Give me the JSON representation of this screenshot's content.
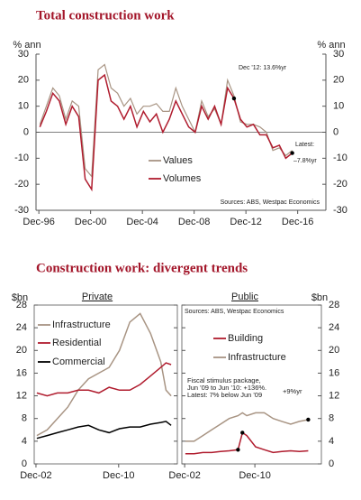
{
  "chart_data": [
    {
      "type": "line",
      "title": "Total construction work",
      "y_label": "% ann",
      "x": [
        1997,
        1997.5,
        1998,
        1998.5,
        1999,
        1999.5,
        2000,
        2000.5,
        2001,
        2001.5,
        2002,
        2002.5,
        2003,
        2003.5,
        2004,
        2004.5,
        2005,
        2005.5,
        2006,
        2006.5,
        2007,
        2007.5,
        2008,
        2008.5,
        2009,
        2009.5,
        2010,
        2010.5,
        2011,
        2011.5,
        2012,
        2012.5,
        2013,
        2013.5,
        2014,
        2014.5,
        2015,
        2015.5,
        2016,
        2016.5
      ],
      "xlim": [
        1996.7,
        2019.1
      ],
      "xticks": [
        {
          "value": 1996.92,
          "label": "Dec-96"
        },
        {
          "value": 2000.92,
          "label": "Dec-00"
        },
        {
          "value": 2004.92,
          "label": "Dec-04"
        },
        {
          "value": 2008.92,
          "label": "Dec-08"
        },
        {
          "value": 2012.92,
          "label": "Dec-12"
        },
        {
          "value": 2016.92,
          "label": "Dec-16"
        }
      ],
      "ylim": [
        -30,
        30
      ],
      "yticks": [
        -30,
        -20,
        -10,
        0,
        10,
        20,
        30
      ],
      "series": [
        {
          "name": "Values",
          "color": "#a89483",
          "values": [
            3,
            10,
            17,
            14,
            5,
            12,
            10,
            -14,
            -17,
            24,
            26,
            17,
            15,
            10,
            13,
            7,
            10,
            10,
            11,
            8,
            8,
            17,
            10,
            5,
            0,
            12,
            6,
            9,
            3,
            20,
            14,
            4,
            3,
            3,
            2,
            0,
            -7,
            -6,
            -9,
            -7
          ]
        },
        {
          "name": "Volumes",
          "color": "#b01c2e",
          "values": [
            2,
            8,
            15,
            12,
            3,
            10,
            6,
            -18,
            -22,
            20,
            22,
            12,
            10,
            5,
            10,
            2,
            8,
            4,
            7,
            0,
            5,
            12,
            7,
            2,
            0,
            10,
            5,
            10,
            3,
            17,
            13,
            5,
            2,
            3,
            -1,
            -1,
            -6,
            -5,
            -10,
            -8
          ]
        }
      ],
      "annotations": [
        "Dec '12: 13.6%yr",
        "Latest:",
        "–7.8%yr",
        "Sources: ABS, Westpac Economics"
      ]
    },
    {
      "type": "line",
      "title": "Construction work: divergent trends",
      "subtitle": "Private",
      "y_label": "$bn",
      "x": [
        2003,
        2004,
        2005,
        2006,
        2007,
        2008,
        2009,
        2010,
        2011,
        2012,
        2013,
        2014,
        2015,
        2015.5,
        2016
      ],
      "xlim": [
        2002.75,
        2016.6
      ],
      "xticks": [
        {
          "value": 2002.92,
          "label": "Dec-02"
        },
        {
          "value": 2010.92,
          "label": "Dec-10"
        }
      ],
      "ylim": [
        0,
        28
      ],
      "yticks": [
        0,
        4,
        8,
        12,
        16,
        20,
        24,
        28
      ],
      "series": [
        {
          "name": "Infrastructure",
          "color": "#a89483",
          "values": [
            5,
            6,
            8,
            10,
            13,
            15,
            16,
            17,
            20,
            25,
            26.5,
            23,
            18,
            13,
            12
          ]
        },
        {
          "name": "Residential",
          "color": "#b01c2e",
          "values": [
            12.5,
            12,
            12.5,
            12.5,
            13,
            13,
            12.5,
            13.5,
            13,
            13,
            14,
            15.5,
            17,
            17.8,
            17.5
          ]
        },
        {
          "name": "Commercial",
          "color": "#000000",
          "values": [
            4.5,
            5,
            5.5,
            6,
            6.5,
            6.8,
            6,
            5.5,
            6.2,
            6.5,
            6.5,
            7,
            7.3,
            7.5,
            6.8
          ]
        }
      ]
    },
    {
      "type": "line",
      "subtitle": "Public",
      "y_label": "$bn",
      "x": [
        2003,
        2004,
        2005,
        2006,
        2007,
        2008,
        2009,
        2009.5,
        2010,
        2011,
        2012,
        2013,
        2014,
        2015,
        2016,
        2017
      ],
      "xlim": [
        2002.6,
        2018.5
      ],
      "xticks": [
        {
          "value": 2002.92,
          "label": "Dec-02"
        },
        {
          "value": 2010.92,
          "label": "Dec-10"
        }
      ],
      "ylim": [
        0,
        28
      ],
      "yticks": [
        0,
        4,
        8,
        12,
        16,
        20,
        24,
        28
      ],
      "series": [
        {
          "name": "Building",
          "color": "#b01c2e",
          "values": [
            1.8,
            1.8,
            2,
            2,
            2.2,
            2.3,
            2.5,
            5.5,
            5,
            3,
            2.5,
            2,
            2.2,
            2.3,
            2.2,
            2.3
          ]
        },
        {
          "name": "Infrastructure",
          "color": "#a89483",
          "values": [
            4,
            4,
            5,
            6,
            7,
            8,
            8.5,
            9,
            8.5,
            9,
            9,
            8,
            7.5,
            7,
            7.5,
            7.8
          ]
        }
      ],
      "annotations": [
        "Sources: ABS, Westpac Economics",
        "Fiscal stimulus package,",
        "Jun '09 to Jun '10: +136%.",
        "Latest:  7% below Jun '09",
        "+9%yr"
      ]
    }
  ]
}
